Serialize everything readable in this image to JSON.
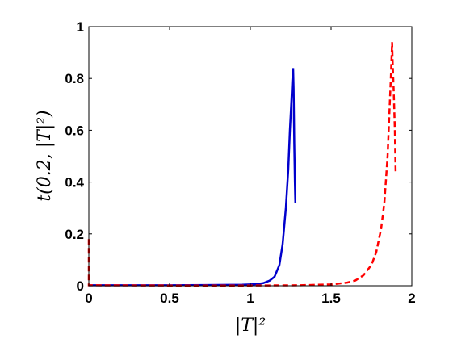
{
  "chart_data": {
    "type": "line",
    "title": "",
    "xlabel": "|T|²",
    "ylabel": "t(0.2, |T|²)",
    "xlim": [
      0,
      2
    ],
    "ylim": [
      0,
      1
    ],
    "x_ticks": [
      "0",
      "0.5",
      "1",
      "1.5",
      "2"
    ],
    "y_ticks": [
      "0",
      "0.2",
      "0.4",
      "0.6",
      "0.8",
      "1"
    ],
    "grid": false,
    "legend": "none",
    "series": [
      {
        "style": "solid",
        "color": "#0000cc",
        "points": [
          [
            0,
            0.002
          ],
          [
            0.5,
            0.002
          ],
          [
            0.8,
            0.003
          ],
          [
            0.95,
            0.004
          ],
          [
            1.03,
            0.006
          ],
          [
            1.08,
            0.01
          ],
          [
            1.12,
            0.02
          ],
          [
            1.15,
            0.035
          ],
          [
            1.18,
            0.08
          ],
          [
            1.2,
            0.16
          ],
          [
            1.22,
            0.3
          ],
          [
            1.235,
            0.45
          ],
          [
            1.245,
            0.6
          ],
          [
            1.255,
            0.72
          ],
          [
            1.26,
            0.79
          ],
          [
            1.265,
            0.84
          ],
          [
            1.268,
            0.76
          ],
          [
            1.272,
            0.55
          ],
          [
            1.276,
            0.4
          ],
          [
            1.279,
            0.32
          ]
        ]
      },
      {
        "style": "dashed",
        "color": "#ff0000",
        "points": [
          [
            0,
            0.18
          ],
          [
            0,
            0.002
          ],
          [
            0.5,
            0.001
          ],
          [
            1.0,
            0.001
          ],
          [
            1.3,
            0.002
          ],
          [
            1.5,
            0.005
          ],
          [
            1.6,
            0.012
          ],
          [
            1.65,
            0.02
          ],
          [
            1.7,
            0.04
          ],
          [
            1.75,
            0.08
          ],
          [
            1.78,
            0.13
          ],
          [
            1.81,
            0.22
          ],
          [
            1.83,
            0.32
          ],
          [
            1.85,
            0.5
          ],
          [
            1.86,
            0.65
          ],
          [
            1.87,
            0.8
          ],
          [
            1.878,
            0.94
          ],
          [
            1.882,
            0.85
          ],
          [
            1.888,
            0.75
          ],
          [
            1.895,
            0.6
          ],
          [
            1.9,
            0.43
          ]
        ]
      }
    ]
  }
}
